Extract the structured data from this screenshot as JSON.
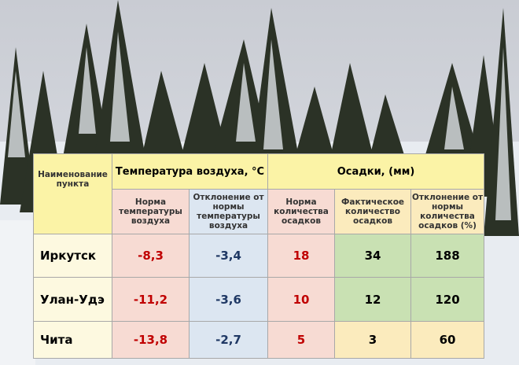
{
  "table": {
    "header": {
      "name": "Наименование пункта",
      "temperature": "Температура воздуха, °C",
      "precipitation": "Осадки, (мм)"
    },
    "subheaders": [
      "Норма температуры воздуха",
      "Отклонение от нормы температуры воздуха",
      "Норма количества осадков",
      "Фактическое количество осадков",
      "Отклонение от нормы количества осадков (%)"
    ],
    "rows": [
      [
        "Иркутск",
        "-8,3",
        "-3,4",
        "18",
        "34",
        "188"
      ],
      [
        "Улан-Удэ",
        "-11,2",
        "-3,6",
        "10",
        "12",
        "120"
      ],
      [
        "Чита",
        "-13,8",
        "-2,7",
        "5",
        "3",
        "60"
      ]
    ]
  }
}
